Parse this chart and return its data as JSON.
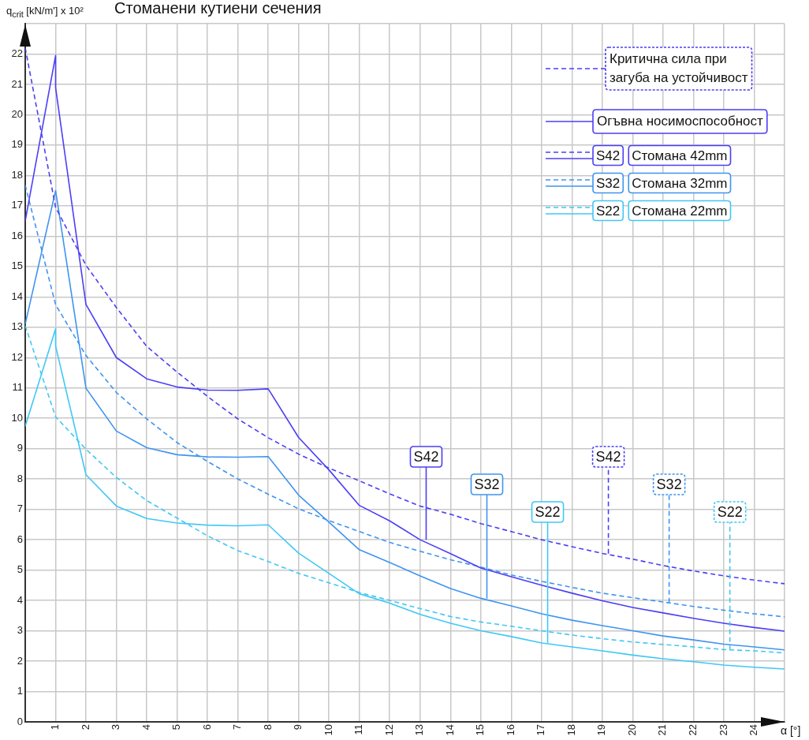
{
  "chart_data": {
    "type": "line",
    "title": "Стоманени кутиени сечения",
    "ylabel": "q$_{crit}$ [kN/m'] x 10²",
    "xlabel": "α [°]",
    "xlim": [
      0,
      25
    ],
    "xticks": [
      1,
      2,
      3,
      4,
      5,
      6,
      7,
      8,
      9,
      10,
      11,
      12,
      13,
      14,
      15,
      16,
      17,
      18,
      19,
      20,
      21,
      22,
      23,
      24,
      {
        "value": 25,
        "label": null
      }
    ],
    "ylim": [
      0,
      23
    ],
    "yticks": [
      0,
      1,
      2,
      3,
      4,
      5,
      6,
      7,
      8,
      9,
      10,
      11,
      12,
      13,
      14,
      15,
      16,
      17,
      18,
      19,
      20,
      21,
      22,
      {
        "value": 23,
        "label": null
      }
    ],
    "grid": true,
    "legend": "top right",
    "marker": "none",
    "series": [
      {
        "color": "#4b3ff5",
        "line_style": "dashed",
        "x": [
          0,
          1,
          2,
          3,
          4,
          5,
          6,
          7,
          8,
          9,
          10,
          11,
          12,
          13,
          14,
          15,
          16,
          17,
          18,
          19,
          20,
          21,
          22,
          23,
          24,
          25
        ],
        "values": [
          22.2,
          16.95,
          15.04,
          13.65,
          12.37,
          11.52,
          10.72,
          9.98,
          9.36,
          8.82,
          8.36,
          7.94,
          7.51,
          7.11,
          6.84,
          6.53,
          6.27,
          6.0,
          5.77,
          5.55,
          5.36,
          5.15,
          4.97,
          4.81,
          4.67,
          4.55
        ]
      },
      {
        "name": "S42 Стомана 42mm",
        "color": "#4b3ff5",
        "line_style": "solid",
        "x": [
          0,
          1,
          1,
          2,
          3,
          4,
          5,
          6,
          7,
          8,
          9,
          10,
          11,
          12,
          13,
          14,
          15,
          16,
          17,
          18,
          19,
          20,
          21,
          22,
          23,
          24,
          25
        ],
        "values": [
          16.5,
          21.95,
          20.89,
          13.75,
          12.0,
          11.3,
          11.03,
          10.93,
          10.92,
          10.97,
          9.37,
          8.3,
          7.13,
          6.62,
          6.0,
          5.54,
          5.07,
          4.78,
          4.5,
          4.24,
          3.99,
          3.77,
          3.59,
          3.41,
          3.25,
          3.11,
          2.99
        ]
      },
      {
        "color": "#3f94f0",
        "line_style": "dashed",
        "x": [
          0,
          1,
          2,
          3,
          4,
          5,
          6,
          7,
          8,
          9,
          10,
          11,
          12,
          13,
          14,
          15,
          16,
          17,
          18,
          19,
          20,
          21,
          22,
          23,
          24,
          25
        ],
        "values": [
          17.68,
          13.74,
          12.07,
          10.85,
          9.98,
          9.2,
          8.58,
          8.0,
          7.5,
          7.02,
          6.63,
          6.27,
          5.91,
          5.62,
          5.34,
          5.1,
          4.84,
          4.63,
          4.43,
          4.24,
          4.09,
          3.95,
          3.8,
          3.68,
          3.56,
          3.46
        ]
      },
      {
        "name": "S32 Стомана 32mm",
        "color": "#3f94f0",
        "line_style": "solid",
        "x": [
          0,
          1,
          2,
          3,
          4,
          5,
          6,
          7,
          8,
          9,
          10,
          11,
          12,
          13,
          14,
          15,
          16,
          17,
          18,
          19,
          20,
          21,
          22,
          23,
          24,
          25
        ],
        "values": [
          13.1,
          17.5,
          10.99,
          9.58,
          9.03,
          8.8,
          8.73,
          8.72,
          8.74,
          7.47,
          6.58,
          5.67,
          5.25,
          4.81,
          4.39,
          4.07,
          3.82,
          3.56,
          3.35,
          3.17,
          3.0,
          2.83,
          2.7,
          2.56,
          2.47,
          2.37
        ]
      },
      {
        "color": "#3fc8f5",
        "line_style": "dashed",
        "x": [
          0,
          1,
          2,
          3,
          4,
          5,
          6,
          7,
          8,
          9,
          10,
          11,
          12,
          13,
          14,
          15,
          16,
          17,
          18,
          19,
          20,
          21,
          22,
          23,
          24,
          25
        ],
        "values": [
          13.05,
          10.05,
          8.98,
          8.05,
          7.29,
          6.71,
          6.13,
          5.64,
          5.28,
          4.89,
          4.58,
          4.26,
          4.0,
          3.73,
          3.47,
          3.29,
          3.15,
          3.0,
          2.86,
          2.74,
          2.63,
          2.55,
          2.47,
          2.38,
          2.34,
          2.27
        ]
      },
      {
        "name": "S22 Стомана 22mm",
        "color": "#3fc8f5",
        "line_style": "solid",
        "x": [
          0,
          1,
          1,
          2,
          3,
          4,
          5,
          6,
          7,
          8,
          9,
          10,
          11,
          12,
          13,
          14,
          15,
          16,
          17,
          18,
          19,
          20,
          21,
          22,
          23,
          24,
          25
        ],
        "values": [
          9.74,
          12.95,
          12.38,
          8.14,
          7.11,
          6.7,
          6.55,
          6.48,
          6.46,
          6.49,
          5.56,
          4.89,
          4.22,
          3.91,
          3.54,
          3.25,
          3.0,
          2.81,
          2.6,
          2.47,
          2.34,
          2.2,
          2.08,
          1.98,
          1.87,
          1.8,
          1.74
        ]
      }
    ],
    "annotations": [
      "Критична сила при загуба на устойчивост",
      "Огъвна носимоспособност",
      {
        "text": "S42",
        "x": 13.2,
        "y": 6.0
      },
      {
        "text": "S32",
        "x": 15.2,
        "y": 4.06
      },
      {
        "text": "S22",
        "x": 17.2,
        "y": 2.6
      },
      {
        "text": "S42",
        "x": 19.2,
        "y": 5.54
      },
      {
        "text": "S32",
        "x": 21.2,
        "y": 3.93
      },
      {
        "text": "S22",
        "x": 23.2,
        "y": 2.37
      }
    ]
  }
}
